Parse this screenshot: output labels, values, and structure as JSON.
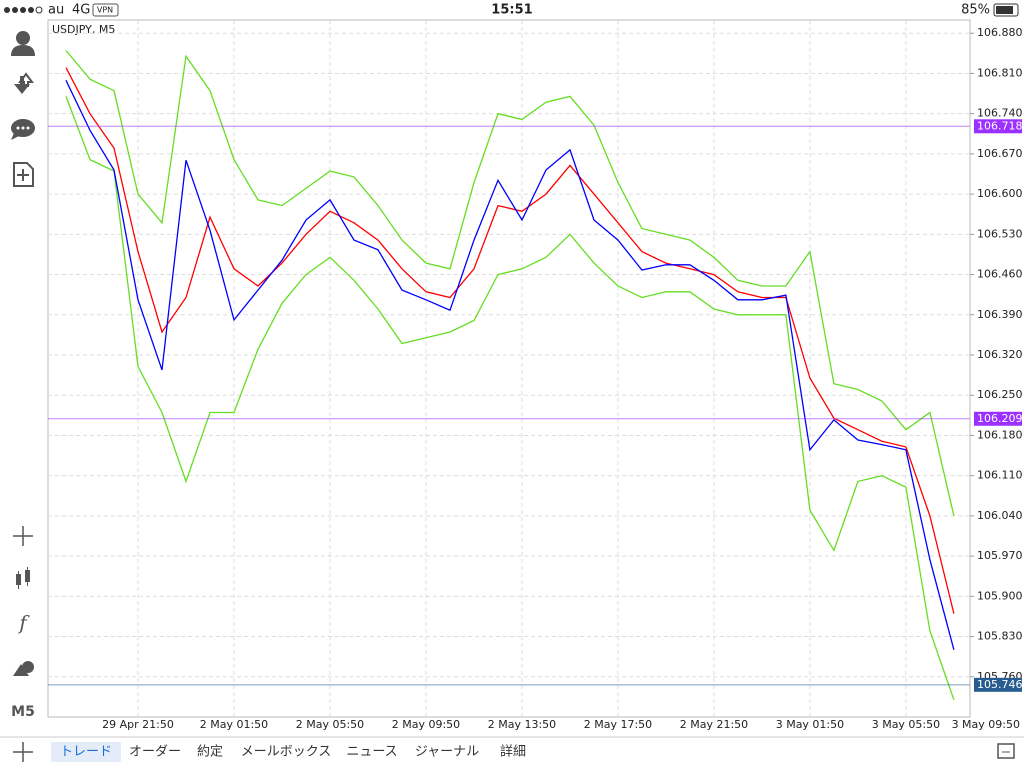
{
  "status_bar": {
    "carrier": "au",
    "network": "4G",
    "vpn": "VPN",
    "time": "15:51",
    "battery": "85%"
  },
  "sidebar": {
    "timeframe": "M5"
  },
  "chart_data": {
    "type": "line",
    "title": "USDJPY, M5",
    "x": [
      -3,
      -2,
      -1,
      0,
      1,
      2,
      3,
      4,
      5,
      6,
      7,
      8,
      9,
      10,
      11,
      12,
      13,
      14,
      15,
      16,
      17,
      18,
      19,
      20,
      21,
      22,
      23,
      24,
      25,
      26,
      27,
      28,
      29,
      30,
      31,
      32,
      33,
      34
    ],
    "series": [
      {
        "color": "#66dd22",
        "values": [
          106.85,
          106.8,
          106.78,
          106.6,
          106.55,
          106.84,
          106.78,
          106.66,
          106.59,
          106.58,
          106.61,
          106.64,
          106.63,
          106.58,
          106.52,
          106.48,
          106.47,
          106.62,
          106.74,
          106.73,
          106.76,
          106.77,
          106.72,
          106.62,
          106.54,
          106.53,
          106.52,
          106.49,
          106.45,
          106.44,
          106.44,
          106.5,
          106.27,
          106.26,
          106.24,
          106.19,
          106.22,
          106.04
        ]
      },
      {
        "color": "#66dd22",
        "values": [
          106.77,
          106.66,
          106.64,
          106.3,
          106.22,
          106.1,
          106.22,
          106.22,
          106.33,
          106.41,
          106.46,
          106.49,
          106.45,
          106.4,
          106.34,
          106.35,
          106.36,
          106.38,
          106.46,
          106.47,
          106.49,
          106.53,
          106.48,
          106.44,
          106.42,
          106.43,
          106.43,
          106.4,
          106.39,
          106.39,
          106.39,
          106.05,
          105.98,
          106.1,
          106.11,
          106.09,
          105.84,
          105.72
        ]
      },
      {
        "color": "#ff0000",
        "values": [
          106.82,
          106.74,
          106.68,
          106.5,
          106.36,
          106.42,
          106.56,
          106.47,
          106.44,
          106.48,
          106.53,
          106.57,
          106.55,
          106.52,
          106.47,
          106.43,
          106.42,
          106.47,
          106.58,
          106.57,
          106.6,
          106.65,
          106.6,
          106.55,
          106.5,
          106.48,
          106.47,
          106.46,
          106.43,
          106.42,
          106.42,
          106.28,
          106.21,
          106.19,
          106.17,
          106.16,
          106.04,
          105.87
        ]
      },
      {
        "color": "#0000ff",
        "values": [
          106.798,
          106.711,
          106.642,
          106.416,
          106.294,
          106.659,
          106.537,
          106.381,
          106.433,
          106.485,
          106.555,
          106.59,
          106.52,
          106.503,
          106.433,
          106.416,
          106.398,
          106.52,
          106.624,
          106.555,
          106.642,
          106.677,
          106.555,
          106.52,
          106.468,
          106.477,
          106.477,
          106.45,
          106.416,
          106.416,
          106.424,
          106.155,
          106.207,
          106.172,
          106.164,
          106.155,
          105.964,
          105.807
        ]
      }
    ],
    "xlim": [
      -3.75,
      34.67
    ],
    "ylim": [
      105.69,
      106.903
    ],
    "xticks": [
      {
        "value": 0,
        "label": "29 Apr 21:50"
      },
      {
        "value": 4,
        "label": "2 May 01:50"
      },
      {
        "value": 8,
        "label": "2 May 05:50"
      },
      {
        "value": 12,
        "label": "2 May 09:50"
      },
      {
        "value": 16,
        "label": "2 May 13:50"
      },
      {
        "value": 20,
        "label": "2 May 17:50"
      },
      {
        "value": 24,
        "label": "2 May 21:50"
      },
      {
        "value": 28,
        "label": "3 May 01:50"
      },
      {
        "value": 32,
        "label": "3 May 05:50"
      },
      {
        "value": 36,
        "label": "3 May 09:50"
      }
    ],
    "yticks": [
      {
        "value": 106.88,
        "label": "106.880"
      },
      {
        "value": 106.81,
        "label": "106.810"
      },
      {
        "value": 106.74,
        "label": "106.740"
      },
      {
        "value": 106.67,
        "label": "106.670"
      },
      {
        "value": 106.6,
        "label": "106.600"
      },
      {
        "value": 106.53,
        "label": "106.530"
      },
      {
        "value": 106.46,
        "label": "106.460"
      },
      {
        "value": 106.39,
        "label": "106.390"
      },
      {
        "value": 106.32,
        "label": "106.320"
      },
      {
        "value": 106.25,
        "label": "106.250"
      },
      {
        "value": 106.18,
        "label": "106.180"
      },
      {
        "value": 106.11,
        "label": "106.110"
      },
      {
        "value": 106.04,
        "label": "106.040"
      },
      {
        "value": 105.97,
        "label": "105.970"
      },
      {
        "value": 105.9,
        "label": "105.900"
      },
      {
        "value": 105.83,
        "label": "105.830"
      },
      {
        "value": 105.76,
        "label": "105.760"
      }
    ],
    "grid": true,
    "levels": [
      {
        "value": 106.718,
        "color": "#9b30ff"
      },
      {
        "value": 106.209,
        "color": "#9b30ff"
      },
      {
        "value": 105.746,
        "color": "#2a5d8f"
      }
    ]
  },
  "tabs": [
    "トレード",
    "オーダー",
    "約定",
    "メールボックス",
    "ニュース",
    "ジャーナル",
    "詳細"
  ],
  "active_tab": 0
}
